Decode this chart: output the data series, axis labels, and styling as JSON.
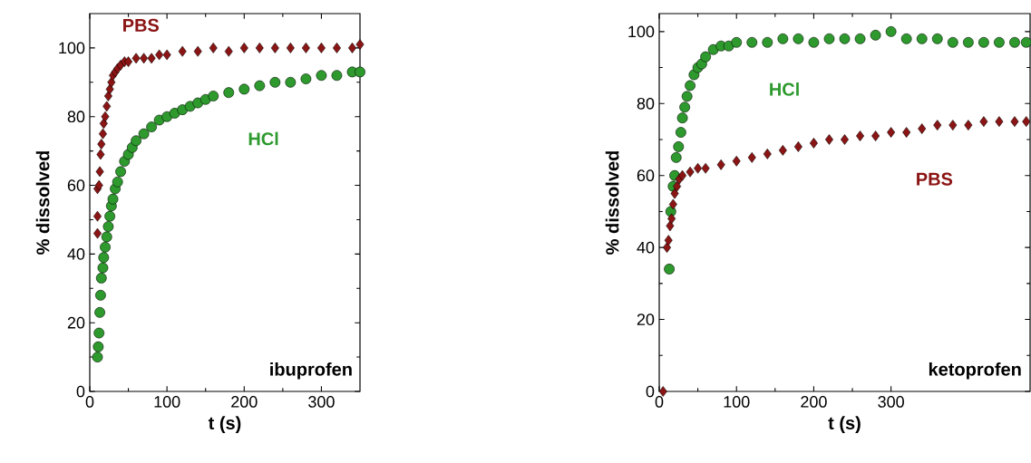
{
  "chart_data": [
    {
      "type": "scatter",
      "xlabel": "t (s)",
      "ylabel": "% dissolved",
      "xlim": [
        0,
        350
      ],
      "ylim": [
        0,
        110
      ],
      "xticks": [
        0,
        100,
        200,
        300
      ],
      "yticks": [
        0,
        20,
        40,
        60,
        80,
        100
      ],
      "annotations": [
        "ibuprofen"
      ],
      "series": [
        {
          "name": "PBS",
          "color": "#8b1414",
          "marker": "diamond",
          "x": [
            10,
            10,
            10,
            12,
            13,
            14,
            15,
            17,
            18,
            20,
            22,
            24,
            26,
            28,
            30,
            33,
            36,
            40,
            45,
            50,
            60,
            70,
            80,
            90,
            100,
            120,
            140,
            160,
            180,
            200,
            220,
            240,
            260,
            280,
            300,
            320,
            340,
            350
          ],
          "values": [
            46,
            51,
            59,
            60,
            64,
            69,
            72,
            75,
            78,
            80,
            83,
            86,
            88,
            90,
            92,
            93,
            94,
            95,
            96,
            96,
            97,
            97,
            97,
            98,
            98,
            99,
            99,
            100,
            99,
            100,
            100,
            100,
            100,
            100,
            100,
            100,
            100,
            101
          ]
        },
        {
          "name": "HCl",
          "color": "#2e9a2e",
          "marker": "circle",
          "x": [
            10,
            11,
            12,
            13,
            14,
            15,
            17,
            18,
            20,
            22,
            24,
            26,
            28,
            30,
            33,
            36,
            40,
            45,
            50,
            55,
            60,
            70,
            80,
            90,
            100,
            110,
            120,
            130,
            140,
            150,
            160,
            180,
            200,
            220,
            240,
            260,
            280,
            300,
            320,
            340,
            350
          ],
          "values": [
            10,
            13,
            17,
            23,
            28,
            33,
            36,
            39,
            42,
            45,
            48,
            51,
            54,
            56,
            59,
            61,
            64,
            67,
            69,
            71,
            73,
            75,
            77,
            79,
            80,
            81,
            82,
            83,
            84,
            85,
            86,
            87,
            88,
            89,
            90,
            90,
            91,
            92,
            92,
            93,
            93
          ]
        }
      ]
    },
    {
      "type": "scatter",
      "xlabel": "t (s)",
      "ylabel": "% dissolved",
      "xlim": [
        0,
        480
      ],
      "ylim": [
        0,
        105
      ],
      "xticks": [
        0,
        100,
        200,
        300
      ],
      "yticks": [
        0,
        20,
        40,
        60,
        80,
        100
      ],
      "annotations": [
        "ketoprofen"
      ],
      "series": [
        {
          "name": "HCl",
          "color": "#2e9a2e",
          "marker": "circle",
          "x": [
            13,
            15,
            18,
            20,
            22,
            25,
            28,
            30,
            33,
            36,
            40,
            45,
            50,
            55,
            60,
            70,
            80,
            90,
            100,
            120,
            140,
            160,
            180,
            200,
            220,
            240,
            260,
            280,
            300,
            320,
            340,
            360,
            380,
            400,
            420,
            440,
            460,
            475
          ],
          "values": [
            34,
            50,
            57,
            60,
            65,
            68,
            72,
            76,
            79,
            82,
            85,
            88,
            90,
            91,
            93,
            95,
            96,
            96,
            97,
            97,
            97,
            98,
            98,
            97,
            98,
            98,
            98,
            99,
            100,
            98,
            98,
            98,
            97,
            97,
            97,
            97,
            97,
            97
          ]
        },
        {
          "name": "PBS",
          "color": "#8b1414",
          "marker": "diamond",
          "x": [
            5,
            10,
            12,
            14,
            16,
            18,
            20,
            23,
            26,
            30,
            40,
            50,
            60,
            80,
            100,
            120,
            140,
            160,
            180,
            200,
            220,
            240,
            260,
            280,
            300,
            320,
            340,
            360,
            380,
            400,
            420,
            440,
            460,
            475
          ],
          "values": [
            0,
            40,
            42,
            46,
            48,
            52,
            55,
            57,
            59,
            60,
            61,
            62,
            62,
            63,
            64,
            65,
            66,
            67,
            68,
            69,
            70,
            70,
            71,
            71,
            72,
            72,
            73,
            74,
            74,
            74,
            75,
            75,
            75,
            75
          ]
        }
      ]
    }
  ]
}
